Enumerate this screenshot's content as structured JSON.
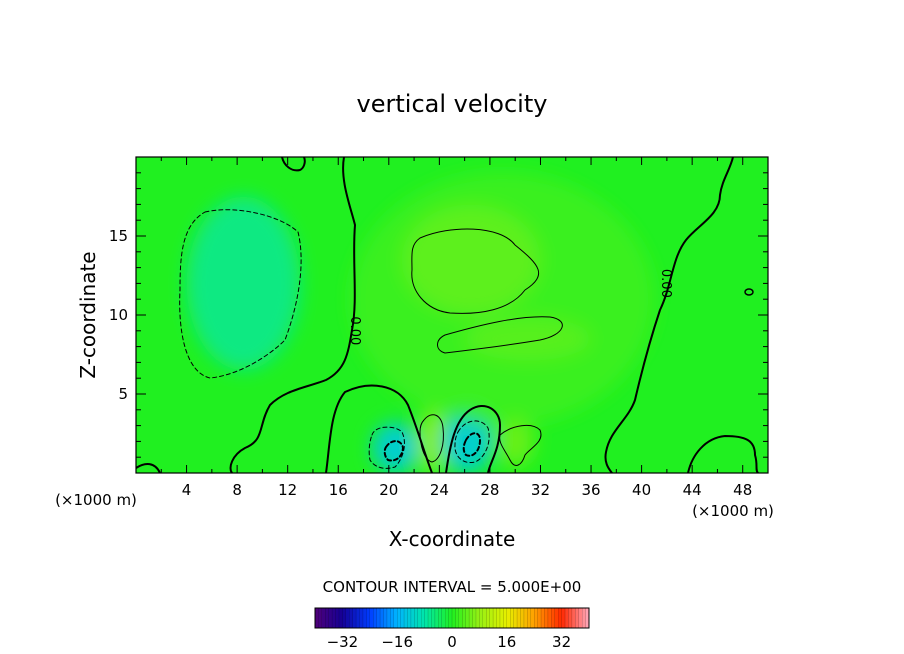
{
  "chart_data": {
    "type": "heatmap",
    "subtype": "filled contour plot",
    "title": "vertical velocity",
    "xlabel": "X-coordinate",
    "ylabel": "Z-coordinate",
    "x_unit_label": "(×1000 m)",
    "x_unit_label_right": "(×1000 m)",
    "xlim": [
      0,
      50
    ],
    "ylim": [
      0,
      20
    ],
    "x_ticks": [
      4,
      8,
      12,
      16,
      20,
      24,
      28,
      32,
      36,
      40,
      44,
      48
    ],
    "y_ticks": [
      5,
      10,
      15
    ],
    "contour_interval_text": "CONTOUR INTERVAL = 5.000E+00",
    "contour_labels": [
      {
        "text": "0.00",
        "x": 17.3,
        "y": 9.0,
        "rotation": 90
      },
      {
        "text": "0.00",
        "x": 41.9,
        "y": 12.0,
        "rotation": 90
      }
    ],
    "zero_contour_note": "solid thick line = 0, thin solid = positive, dashed = negative",
    "colorbar": {
      "range": [
        -40,
        40
      ],
      "tick_labels": [
        "-32",
        "-16",
        "0",
        "16",
        "32"
      ],
      "tick_values": [
        -32,
        -16,
        0,
        16,
        32
      ]
    },
    "features": [
      {
        "kind": "downdraft",
        "x": 8.5,
        "y": 12.0,
        "value": -6
      },
      {
        "kind": "updraft",
        "x": 26.5,
        "y": 13.5,
        "value": 6
      },
      {
        "kind": "updraft",
        "x": 31.0,
        "y": 8.5,
        "value": 5
      },
      {
        "kind": "downdraft",
        "x": 20.5,
        "y": 1.6,
        "value": -12
      },
      {
        "kind": "updraft",
        "x": 23.5,
        "y": 2.0,
        "value": 7
      },
      {
        "kind": "downdraft",
        "x": 26.2,
        "y": 2.0,
        "value": -12
      },
      {
        "kind": "updraft",
        "x": 30.0,
        "y": 2.0,
        "value": 5
      }
    ],
    "grid": false,
    "legend": "colorbar bottom-center"
  }
}
